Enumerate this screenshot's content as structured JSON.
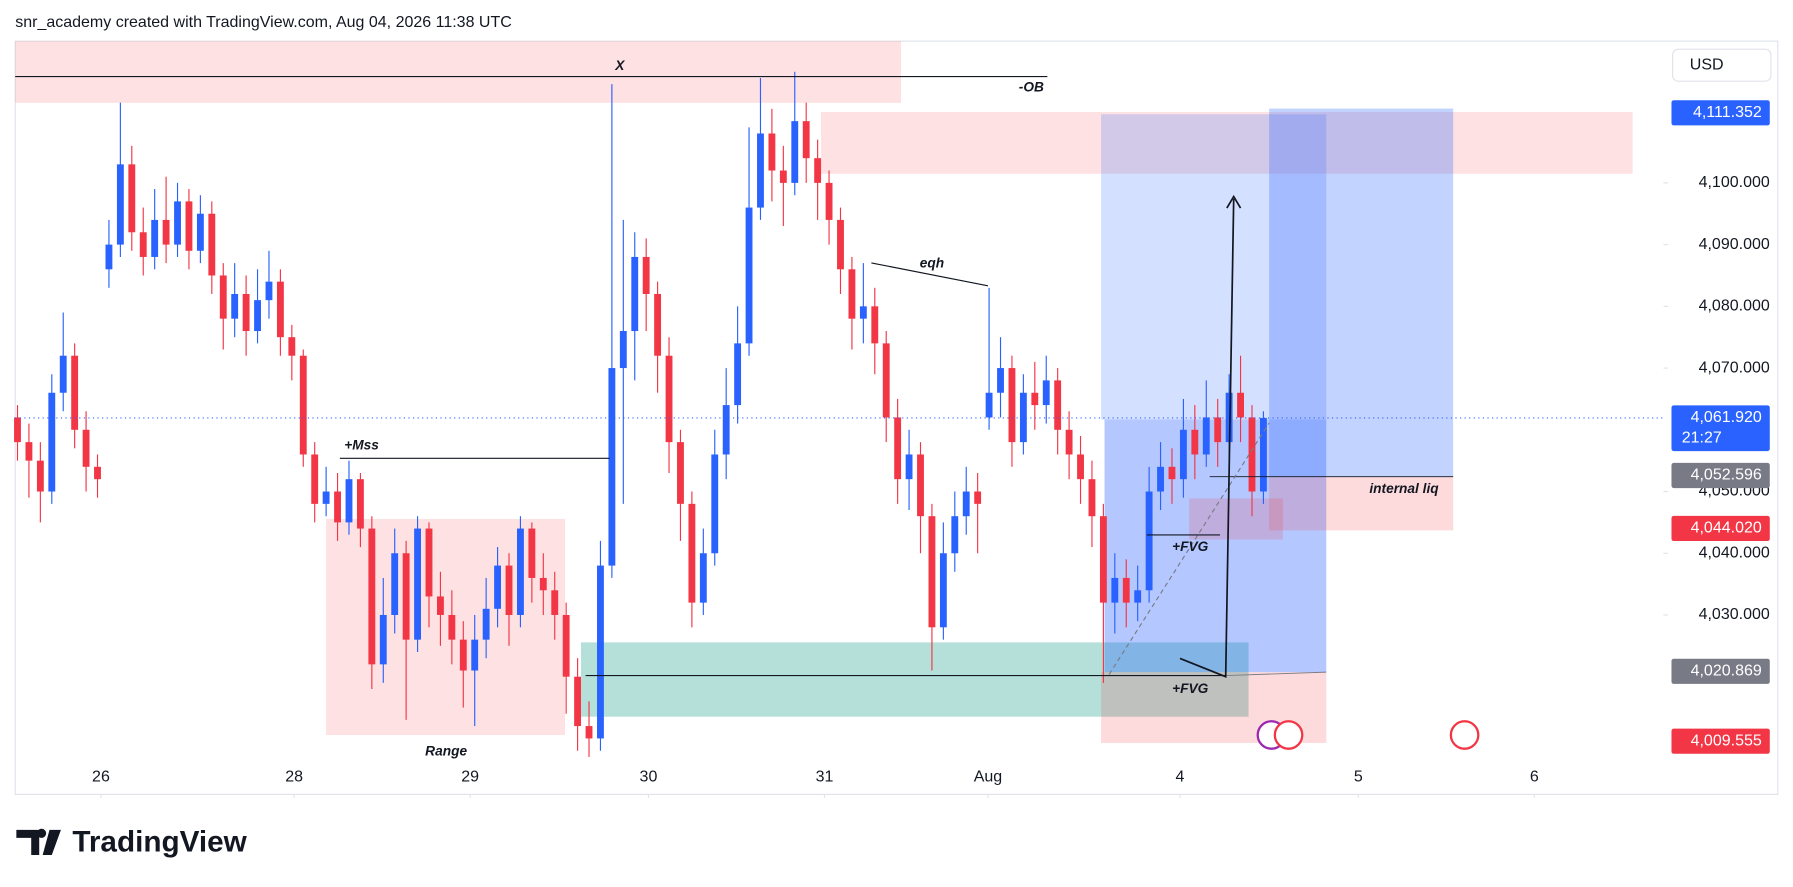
{
  "header": "snr_academy created with TradingView.com, Aug 04, 2026 11:38 UTC",
  "footer": "TradingView",
  "chart_data": {
    "type": "candlestick",
    "currency": "USD",
    "up_color": "#2962ff",
    "down_color": "#f23645",
    "x": [
      0,
      1,
      2,
      3,
      4,
      5,
      6,
      7,
      8,
      9,
      10,
      11,
      12,
      13,
      14,
      15,
      16,
      17,
      18,
      19,
      20,
      21,
      22,
      23,
      24,
      25,
      26,
      27,
      28,
      29,
      30,
      31,
      32,
      33,
      34,
      35,
      36,
      37,
      38,
      39,
      40,
      41,
      42,
      43,
      44,
      45,
      46,
      47,
      48,
      49,
      50,
      51,
      52,
      53,
      54,
      55,
      56,
      57,
      58,
      59,
      60,
      61,
      62,
      63,
      64,
      65,
      66,
      67,
      68,
      69,
      70,
      71,
      72,
      73,
      74,
      75,
      76,
      77,
      78,
      79,
      80,
      81,
      82,
      83,
      84,
      85,
      86,
      87,
      88,
      89,
      90,
      91,
      92,
      93,
      94,
      95,
      96,
      97,
      98,
      99,
      100,
      101,
      102,
      103,
      104,
      105,
      106,
      107,
      108,
      109
    ],
    "open": [
      4062,
      4058,
      4055,
      4050,
      4066,
      4072,
      4060,
      4054,
      4086,
      4090,
      4103,
      4092,
      4088,
      4094,
      4090,
      4097,
      4089,
      4095,
      4085,
      4078,
      4082,
      4076,
      4081,
      4084,
      4075,
      4072,
      4056,
      4048,
      4050,
      4045,
      4052,
      4044,
      4022,
      4030,
      4040,
      4026,
      4044,
      4033,
      4030,
      4026,
      4021,
      4026,
      4031,
      4038,
      4030,
      4044,
      4036,
      4034,
      4030,
      4020,
      4012,
      4010,
      4038,
      4070,
      4076,
      4088,
      4082,
      4072,
      4058,
      4048,
      4032,
      4040,
      4056,
      4064,
      4074,
      4096,
      4108,
      4102,
      4100,
      4110,
      4104,
      4100,
      4094,
      4086,
      4078,
      4080,
      4074,
      4062,
      4052,
      4056,
      4046,
      4028,
      4040,
      4046,
      4050,
      4062,
      4066,
      4070,
      4058,
      4066,
      4064,
      4068,
      4060,
      4056,
      4052,
      4046,
      4032,
      4036,
      4032,
      4034,
      4050,
      4054,
      4052,
      4060,
      4056,
      4062,
      4058,
      4066,
      4062,
      4050
    ],
    "high": [
      4064,
      4061,
      4058,
      4069,
      4079,
      4074,
      4063,
      4056,
      4094,
      4113,
      4106,
      4096,
      4099,
      4101,
      4100,
      4099,
      4098,
      4097,
      4087,
      4087,
      4085,
      4086,
      4089,
      4086,
      4077,
      4073,
      4058,
      4054,
      4053,
      4055,
      4053,
      4046,
      4036,
      4044,
      4042,
      4046,
      4045,
      4037,
      4034,
      4029,
      4030,
      4036,
      4041,
      4040,
      4046,
      4045,
      4040,
      4037,
      4032,
      4023,
      4016,
      4042,
      4116,
      4094,
      4092,
      4091,
      4084,
      4075,
      4060,
      4050,
      4044,
      4060,
      4070,
      4080,
      4109,
      4117,
      4112,
      4106,
      4118,
      4113,
      4107,
      4102,
      4096,
      4088,
      4087,
      4083,
      4076,
      4065,
      4060,
      4058,
      4048,
      4045,
      4050,
      4054,
      4053,
      4083,
      4075,
      4072,
      4069,
      4071,
      4072,
      4070,
      4063,
      4059,
      4055,
      4048,
      4040,
      4039,
      4038,
      4054,
      4058,
      4057,
      4065,
      4064,
      4068,
      4065,
      4069,
      4072,
      4064,
      4063
    ],
    "low": [
      4055,
      4049,
      4045,
      4048,
      4063,
      4057,
      4050,
      4049,
      4083,
      4088,
      4089,
      4085,
      4086,
      4087,
      4088,
      4086,
      4087,
      4082,
      4073,
      4075,
      4072,
      4074,
      4078,
      4072,
      4068,
      4054,
      4045,
      4046,
      4042,
      4043,
      4041,
      4018,
      4019,
      4027,
      4013,
      4024,
      4028,
      4025,
      4022,
      4015,
      4012,
      4023,
      4028,
      4025,
      4028,
      4032,
      4030,
      4026,
      4014,
      4008,
      4007,
      4008,
      4036,
      4048,
      4068,
      4076,
      4066,
      4053,
      4042,
      4028,
      4030,
      4038,
      4052,
      4061,
      4072,
      4094,
      4097,
      4093,
      4098,
      4100,
      4094,
      4090,
      4082,
      4073,
      4074,
      4069,
      4058,
      4048,
      4047,
      4040,
      4021,
      4026,
      4037,
      4043,
      4040,
      4060,
      4062,
      4054,
      4056,
      4060,
      4061,
      4056,
      4052,
      4048,
      4041,
      4019,
      4027,
      4028,
      4029,
      4032,
      4047,
      4048,
      4049,
      4052,
      4054,
      4054,
      4055,
      4058,
      4046,
      4048
    ],
    "close": [
      4058,
      4055,
      4050,
      4066,
      4072,
      4060,
      4054,
      4052,
      4090,
      4103,
      4092,
      4088,
      4094,
      4090,
      4097,
      4089,
      4095,
      4085,
      4078,
      4082,
      4076,
      4081,
      4084,
      4075,
      4072,
      4056,
      4048,
      4050,
      4045,
      4052,
      4044,
      4022,
      4030,
      4040,
      4026,
      4044,
      4033,
      4030,
      4026,
      4021,
      4026,
      4031,
      4038,
      4030,
      4044,
      4036,
      4034,
      4030,
      4020,
      4012,
      4010,
      4038,
      4070,
      4076,
      4088,
      4082,
      4072,
      4058,
      4048,
      4032,
      4040,
      4056,
      4064,
      4074,
      4096,
      4108,
      4102,
      4100,
      4110,
      4104,
      4100,
      4094,
      4086,
      4078,
      4080,
      4074,
      4062,
      4052,
      4056,
      4046,
      4028,
      4040,
      4046,
      4050,
      4048,
      4066,
      4070,
      4058,
      4066,
      4064,
      4068,
      4060,
      4056,
      4052,
      4046,
      4032,
      4036,
      4032,
      4034,
      4050,
      4054,
      4052,
      4060,
      4056,
      4062,
      4058,
      4066,
      4062,
      4050,
      4061.92
    ],
    "xlim": [
      -0.2,
      144
    ],
    "xticks": [
      {
        "value": 7.3,
        "label": "26"
      },
      {
        "value": 24.2,
        "label": "28"
      },
      {
        "value": 39.6,
        "label": "29"
      },
      {
        "value": 55.2,
        "label": "30"
      },
      {
        "value": 70.6,
        "label": "31"
      },
      {
        "value": 84.9,
        "label": "Aug"
      },
      {
        "value": 101.7,
        "label": "4"
      },
      {
        "value": 117.3,
        "label": "5"
      },
      {
        "value": 132.7,
        "label": "6"
      }
    ],
    "ylim": [
      4000.93,
      4122.96
    ],
    "yticks": [
      {
        "value": 4030,
        "label": "4,030.000"
      },
      {
        "value": 4040,
        "label": "4,040.000"
      },
      {
        "value": 4050,
        "label": "4,050.000"
      },
      {
        "value": 4070,
        "label": "4,070.000"
      },
      {
        "value": 4080,
        "label": "4,080.000"
      },
      {
        "value": 4090,
        "label": "4,090.000"
      },
      {
        "value": 4100,
        "label": "4,100.000"
      }
    ],
    "price_labels": [
      {
        "value": 4111.352,
        "label": "4,111.352",
        "color": "#2962ff"
      },
      {
        "value": 4061.92,
        "label": "4,061.920",
        "color": "#2962ff"
      },
      {
        "value": 4052.596,
        "label": "4,052.596",
        "color": "#787b86"
      },
      {
        "value": 4044.02,
        "label": "4,044.020",
        "color": "#f23645"
      },
      {
        "value": 4020.869,
        "label": "4,020.869",
        "color": "#787b86"
      },
      {
        "value": 4009.555,
        "label": "4,009.555",
        "color": "#f23645"
      }
    ],
    "countdown": "21:27",
    "annotations": [
      "X",
      "-OB",
      "eqh",
      "+Mss",
      "Range",
      "+FVG",
      "+FVG",
      "internal liq"
    ]
  }
}
